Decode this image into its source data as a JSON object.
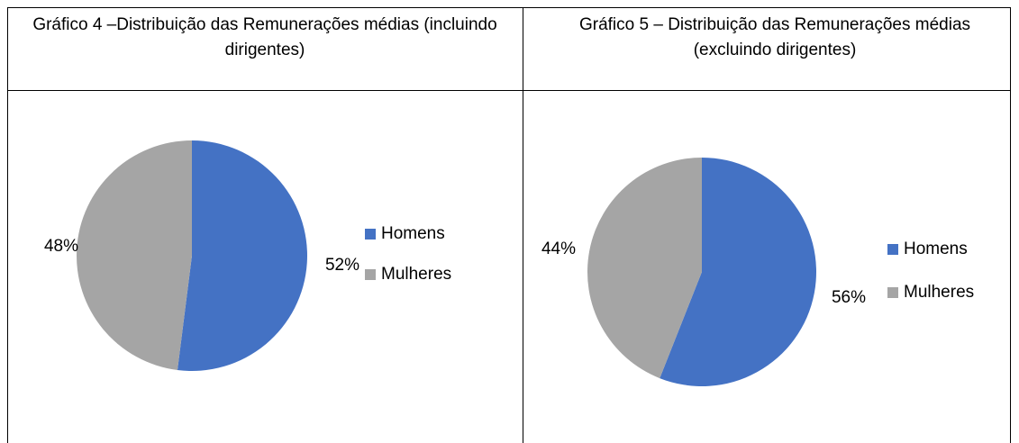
{
  "chart_data": [
    {
      "type": "pie",
      "title": "Gráfico 4 –Distribuição das Remunerações médias (incluindo dirigentes)",
      "categories": [
        "Homens",
        "Mulheres"
      ],
      "values": [
        52,
        48
      ],
      "value_labels": [
        "52%",
        "48%"
      ],
      "colors": [
        "#4472c4",
        "#a5a5a5"
      ],
      "legend": "right"
    },
    {
      "type": "pie",
      "title": "Gráfico 5 – Distribuição das Remunerações médias (excluindo dirigentes)",
      "categories": [
        "Homens",
        "Mulheres"
      ],
      "values": [
        56,
        44
      ],
      "value_labels": [
        "56%",
        "44%"
      ],
      "colors": [
        "#4472c4",
        "#a5a5a5"
      ],
      "legend": "right"
    }
  ]
}
